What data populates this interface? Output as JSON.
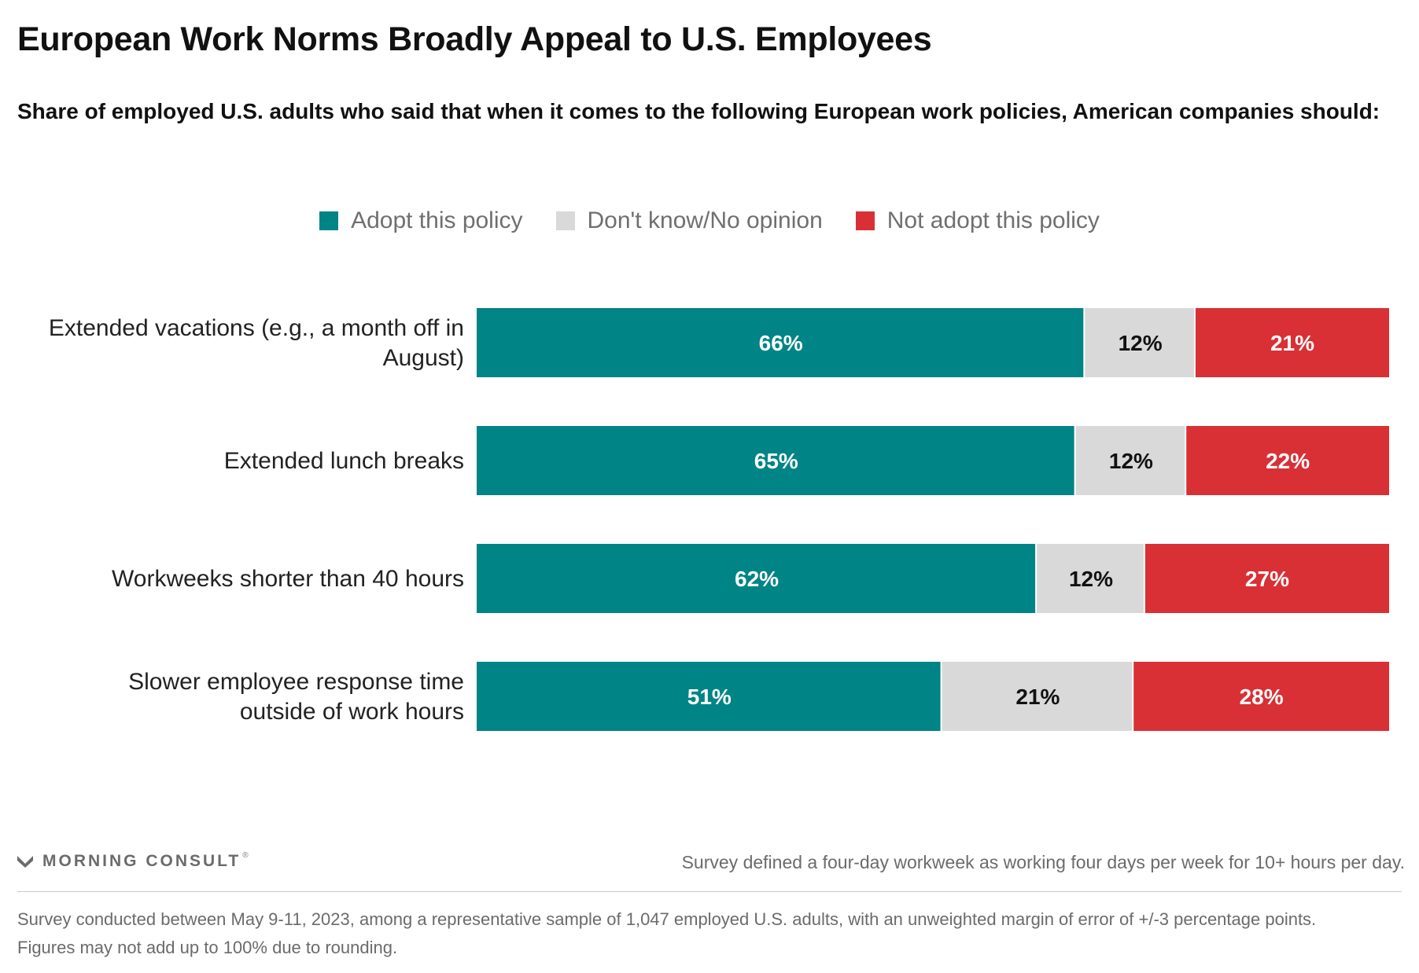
{
  "header": {
    "title": "European Work Norms Broadly Appeal to U.S. Employees",
    "subtitle": "Share of employed U.S. adults who said that when it comes to the following European work policies, American companies should:"
  },
  "legend": [
    {
      "label": "Adopt this policy",
      "color": "#008485"
    },
    {
      "label": "Don't know/No opinion",
      "color": "#d9d9d9"
    },
    {
      "label": "Not adopt this policy",
      "color": "#d83035"
    }
  ],
  "chart_data": {
    "type": "bar",
    "orientation": "horizontal",
    "stacked": true,
    "categories": [
      [
        "Extended vacations (e.g., a month off in",
        "August)"
      ],
      [
        "Extended lunch breaks"
      ],
      [
        "Workweeks shorter than 40 hours"
      ],
      [
        "Slower employee response time",
        "outside of work hours"
      ]
    ],
    "series": [
      {
        "name": "Adopt this policy",
        "color": "#008485",
        "label_color": "#ffffff",
        "values": [
          66,
          65,
          62,
          51
        ]
      },
      {
        "name": "Don't know/No opinion",
        "color": "#d9d9d9",
        "label_color": "#111111",
        "values": [
          12,
          12,
          12,
          21
        ]
      },
      {
        "name": "Not adopt this policy",
        "color": "#d83035",
        "label_color": "#ffffff",
        "values": [
          21,
          22,
          27,
          28
        ]
      }
    ],
    "value_suffix": "%",
    "legend_position": "top-center",
    "grid": false
  },
  "footer": {
    "brand": "MORNING CONSULT",
    "brand_mark": "®",
    "note": "Survey defined a four-day workweek as working four days per week for 10+ hours per day.",
    "methodology": "Survey conducted between May 9-11, 2023, among a representative sample of 1,047 employed U.S. adults, with an unweighted margin of error of +/-3 percentage points. Figures may not add up to 100% due to rounding."
  }
}
